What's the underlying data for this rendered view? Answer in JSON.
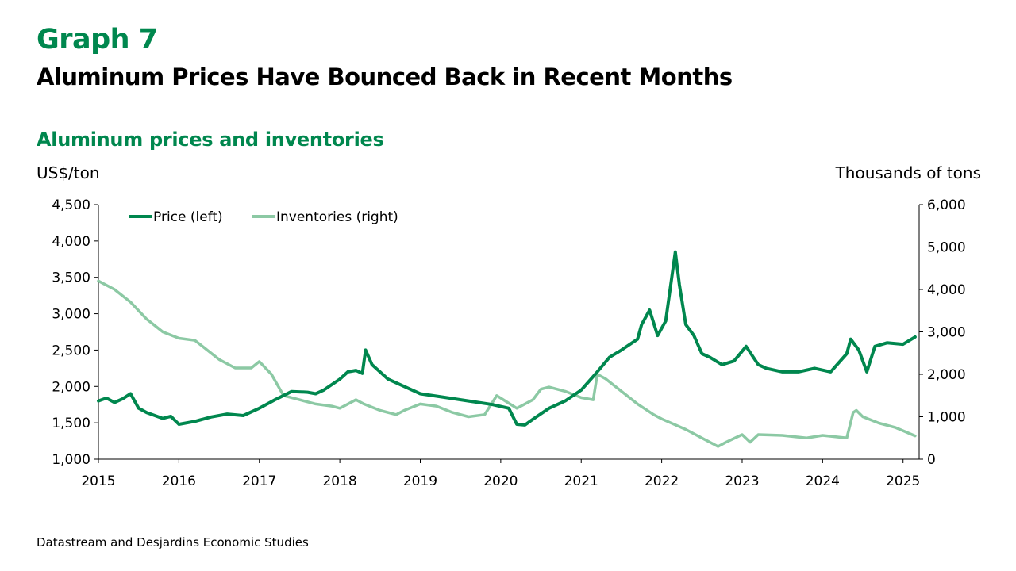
{
  "header": {
    "graph_number": "Graph 7",
    "title": "Aluminum Prices Have Bounced Back in Recent Months"
  },
  "chart_title": "Aluminum prices and inventories",
  "left_axis_label": "US$/ton",
  "right_axis_label": "Thousands of tons",
  "source": "Datastream and Desjardins Economic Studies",
  "colors": {
    "price": "#00874E",
    "inventories": "#8CC9A4",
    "accent": "#00874E"
  },
  "chart_data": {
    "type": "line",
    "x_ticks": [
      "2015",
      "2016",
      "2017",
      "2018",
      "2019",
      "2020",
      "2021",
      "2022",
      "2023",
      "2024",
      "2025"
    ],
    "xlim": [
      2015,
      2025.2
    ],
    "y_left": {
      "label": "US$/ton",
      "lim": [
        1000,
        4500
      ],
      "ticks": [
        "1,000",
        "1,500",
        "2,000",
        "2,500",
        "3,000",
        "3,500",
        "4,000",
        "4,500"
      ]
    },
    "y_right": {
      "label": "Thousands of tons",
      "lim": [
        0,
        6000
      ],
      "ticks": [
        "0",
        "1,000",
        "2,000",
        "3,000",
        "4,000",
        "5,000",
        "6,000"
      ]
    },
    "legend_position": "top-left",
    "grid": false,
    "series": [
      {
        "name": "Price (left)",
        "axis": "left",
        "x": [
          2015.0,
          2015.1,
          2015.2,
          2015.3,
          2015.4,
          2015.5,
          2015.6,
          2015.8,
          2015.9,
          2016.0,
          2016.2,
          2016.4,
          2016.6,
          2016.8,
          2017.0,
          2017.2,
          2017.4,
          2017.6,
          2017.7,
          2017.8,
          2018.0,
          2018.1,
          2018.2,
          2018.28,
          2018.32,
          2018.4,
          2018.6,
          2018.8,
          2019.0,
          2019.3,
          2019.6,
          2019.9,
          2020.1,
          2020.2,
          2020.3,
          2020.4,
          2020.6,
          2020.8,
          2021.0,
          2021.2,
          2021.35,
          2021.5,
          2021.7,
          2021.75,
          2021.85,
          2021.95,
          2022.05,
          2022.17,
          2022.22,
          2022.3,
          2022.4,
          2022.5,
          2022.6,
          2022.75,
          2022.9,
          2023.05,
          2023.2,
          2023.3,
          2023.5,
          2023.7,
          2023.9,
          2024.1,
          2024.3,
          2024.35,
          2024.45,
          2024.55,
          2024.65,
          2024.8,
          2025.0,
          2025.15
        ],
        "values": [
          1800,
          1840,
          1780,
          1830,
          1900,
          1700,
          1640,
          1560,
          1590,
          1480,
          1520,
          1580,
          1620,
          1600,
          1700,
          1820,
          1930,
          1920,
          1900,
          1950,
          2100,
          2200,
          2220,
          2180,
          2500,
          2300,
          2100,
          2000,
          1900,
          1850,
          1800,
          1750,
          1700,
          1480,
          1470,
          1550,
          1700,
          1800,
          1950,
          2200,
          2400,
          2500,
          2650,
          2850,
          3050,
          2700,
          2900,
          3850,
          3400,
          2850,
          2700,
          2450,
          2400,
          2300,
          2350,
          2550,
          2300,
          2250,
          2200,
          2200,
          2250,
          2200,
          2450,
          2650,
          2500,
          2200,
          2550,
          2600,
          2580,
          2680
        ]
      },
      {
        "name": "Inventories (right)",
        "axis": "right",
        "x": [
          2015.0,
          2015.2,
          2015.4,
          2015.6,
          2015.8,
          2016.0,
          2016.2,
          2016.3,
          2016.5,
          2016.7,
          2016.9,
          2017.0,
          2017.15,
          2017.3,
          2017.5,
          2017.7,
          2017.9,
          2018.0,
          2018.2,
          2018.3,
          2018.5,
          2018.7,
          2018.8,
          2019.0,
          2019.2,
          2019.4,
          2019.6,
          2019.8,
          2019.95,
          2020.2,
          2020.4,
          2020.5,
          2020.6,
          2020.8,
          2021.0,
          2021.15,
          2021.2,
          2021.3,
          2021.5,
          2021.7,
          2021.9,
          2022.0,
          2022.3,
          2022.5,
          2022.7,
          2022.8,
          2023.0,
          2023.1,
          2023.2,
          2023.5,
          2023.8,
          2024.0,
          2024.3,
          2024.38,
          2024.42,
          2024.5,
          2024.7,
          2024.9,
          2025.15
        ],
        "values": [
          4200,
          4000,
          3700,
          3300,
          3000,
          2850,
          2800,
          2650,
          2350,
          2150,
          2150,
          2300,
          2000,
          1500,
          1400,
          1300,
          1250,
          1200,
          1400,
          1300,
          1150,
          1050,
          1150,
          1300,
          1250,
          1100,
          1000,
          1050,
          1500,
          1200,
          1400,
          1650,
          1700,
          1600,
          1450,
          1400,
          2000,
          1900,
          1600,
          1300,
          1050,
          950,
          700,
          500,
          300,
          400,
          580,
          400,
          580,
          560,
          500,
          560,
          500,
          1100,
          1150,
          1000,
          850,
          750,
          550
        ]
      }
    ]
  }
}
